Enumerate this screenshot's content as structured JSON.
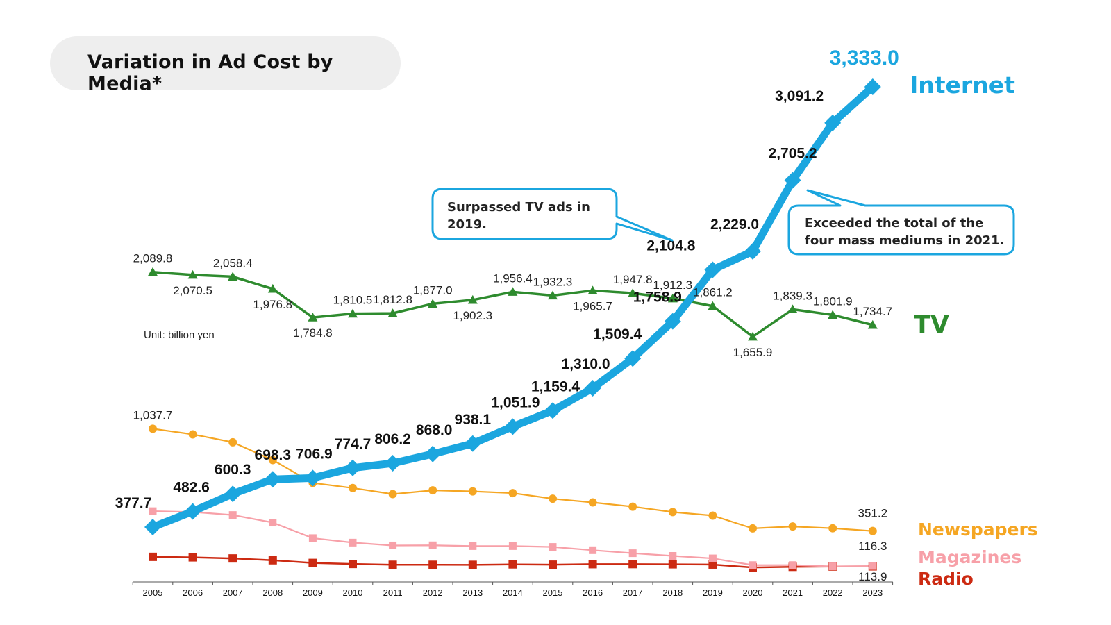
{
  "title": "Variation in Ad Cost by Media*",
  "unit_note": "Unit: billion yen",
  "callouts": {
    "tv_surpass": "Surpassed TV ads in 2019.",
    "four_mass": "Exceeded the total of the four mass mediums in 2021."
  },
  "colors": {
    "internet": "#1ba6df",
    "tv": "#2e8b2e",
    "newspapers": "#f5a623",
    "magazines": "#f7a0a8",
    "radio": "#cc2a12",
    "callout_border": "#1ba6df"
  },
  "chart_data": {
    "type": "line",
    "title": "Variation in Ad Cost by Media*",
    "ylabel": "Unit: billion yen",
    "x": [
      "2005",
      "2006",
      "2007",
      "2008",
      "2009",
      "2010",
      "2011",
      "2012",
      "2013",
      "2014",
      "2015",
      "2016",
      "2017",
      "2018",
      "2019",
      "2020",
      "2021",
      "2022",
      "2023"
    ],
    "ylim": [
      0,
      3450
    ],
    "grid": false,
    "legend": "end-of-line labels",
    "series": [
      {
        "name": "Internet",
        "color": "#1ba6df",
        "marker": "diamond",
        "values": [
          377.7,
          482.6,
          600.3,
          698.3,
          706.9,
          774.7,
          806.2,
          868.0,
          938.1,
          1051.9,
          1159.4,
          1310.0,
          1509.4,
          1758.9,
          2104.8,
          2229.0,
          2705.2,
          3091.2,
          3333.0
        ],
        "labels": [
          "377.7",
          "482.6",
          "600.3",
          "698.3",
          "706.9",
          "774.7",
          "806.2",
          "868.0",
          "938.1",
          "1,051.9",
          "1,159.4",
          "1,310.0",
          "1,509.4",
          "1,758.9",
          "2,104.8",
          "2,229.0",
          "2,705.2",
          "3,091.2",
          "3,333.0"
        ]
      },
      {
        "name": "TV",
        "color": "#2e8b2e",
        "marker": "triangle",
        "values": [
          2089.8,
          2070.5,
          2058.4,
          1976.8,
          1784.8,
          1810.5,
          1812.8,
          1877.0,
          1902.3,
          1956.4,
          1932.3,
          1965.7,
          1947.8,
          1912.3,
          1861.2,
          1655.9,
          1839.3,
          1801.9,
          1734.7
        ],
        "labels": [
          "2,089.8",
          "2,070.5",
          "2,058.4",
          "1,976.8",
          "1,784.8",
          "1,810.5",
          "1,812.8",
          "1,877.0",
          "1,902.3",
          "1,956.4",
          "1,932.3",
          "1,965.7",
          "1,947.8",
          "1,912.3",
          "1,861.2",
          "1,655.9",
          "1,839.3",
          "1,801.9",
          "1,734.7"
        ]
      },
      {
        "name": "Newspapers",
        "color": "#f5a623",
        "marker": "circle",
        "values": [
          1037.7,
          1000.0,
          947.0,
          827.6,
          673.9,
          639.6,
          599.0,
          624.2,
          617.0,
          605.7,
          567.9,
          543.1,
          514.7,
          478.4,
          454.7,
          368.8,
          381.5,
          369.7,
          351.2
        ],
        "labels": [
          "1,037.7",
          "",
          "",
          "",
          "",
          "",
          "",
          "",
          "",
          "",
          "",
          "",
          "",
          "",
          "",
          "",
          "",
          "",
          "351.2"
        ]
      },
      {
        "name": "Magazines",
        "color": "#f7a0a8",
        "marker": "square",
        "values": [
          484.2,
          478.9,
          458.5,
          407.8,
          303.4,
          273.3,
          254.2,
          255.1,
          249.9,
          250.0,
          244.3,
          222.3,
          202.3,
          184.1,
          167.5,
          122.3,
          122.4,
          114.0,
          116.3
        ],
        "labels": [
          "",
          "",
          "",
          "",
          "",
          "",
          "",
          "",
          "",
          "",
          "",
          "",
          "",
          "",
          "",
          "",
          "",
          "",
          "116.3"
        ]
      },
      {
        "name": "Radio",
        "color": "#cc2a12",
        "marker": "square",
        "values": [
          177.8,
          174.4,
          167.1,
          154.9,
          137.0,
          129.9,
          124.7,
          124.6,
          124.3,
          127.2,
          125.4,
          128.5,
          129.0,
          127.8,
          126.0,
          106.6,
          110.6,
          112.9,
          113.9
        ],
        "labels": [
          "",
          "",
          "",
          "",
          "",
          "",
          "",
          "",
          "",
          "",
          "",
          "",
          "",
          "",
          "",
          "",
          "",
          "",
          "113.9"
        ]
      }
    ]
  }
}
